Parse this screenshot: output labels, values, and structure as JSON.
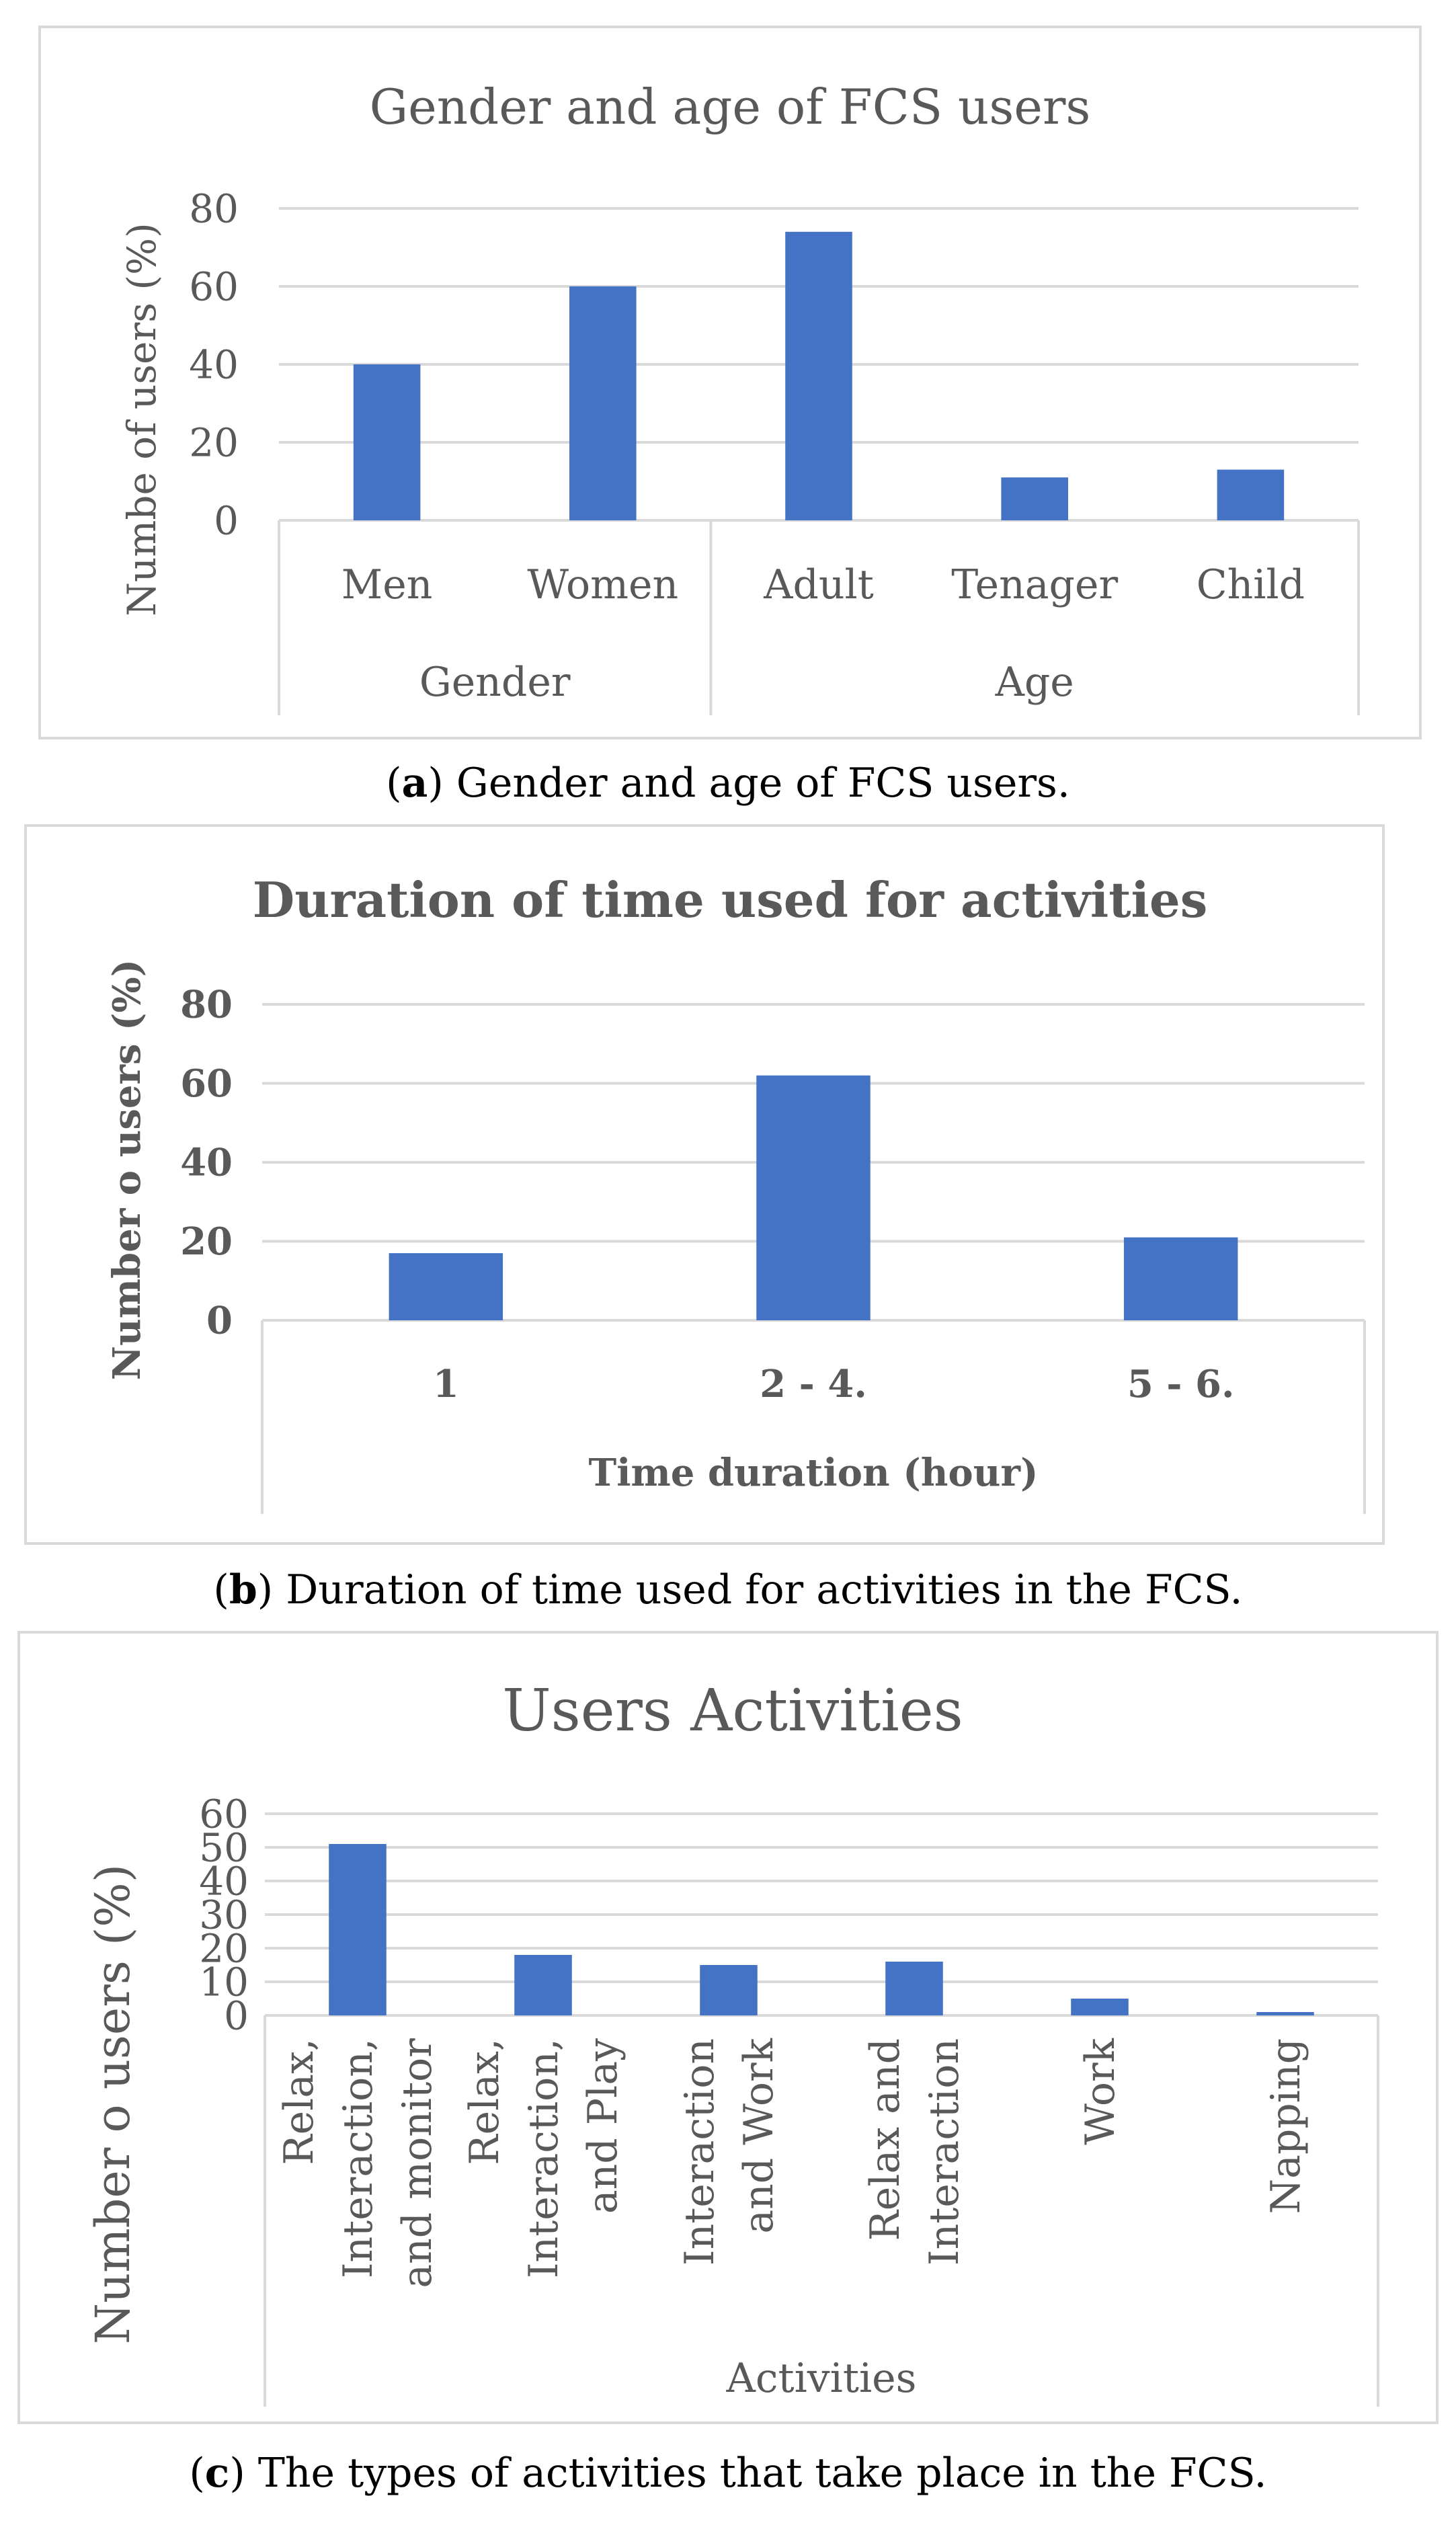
{
  "chart_data": [
    {
      "type": "bar",
      "title": "Gender and age of FCS users",
      "ylabel": "Numbe  of users (%)",
      "xlabel": "",
      "ylim": [
        0,
        80
      ],
      "yticks": [
        "0",
        "20",
        "40",
        "60",
        "80"
      ],
      "groups": [
        {
          "name": "Gender",
          "categories": [
            "Men",
            "Women"
          ]
        },
        {
          "name": "Age",
          "categories": [
            "Adult",
            "Tenager",
            "Child"
          ]
        }
      ],
      "categories": [
        "Men",
        "Women",
        "Adult",
        "Tenager",
        "Child"
      ],
      "values": [
        40,
        60,
        74,
        11,
        13
      ],
      "grid": true,
      "bar_color": "#4472c4"
    },
    {
      "type": "bar",
      "title": "Duration of time used for activities",
      "ylabel": "Number o users (%)",
      "xlabel": "Time duration (hour)",
      "ylim": [
        0,
        80
      ],
      "yticks": [
        "0",
        "20",
        "40",
        "60",
        "80"
      ],
      "categories": [
        "1",
        "2 - 4.",
        "5 - 6."
      ],
      "values": [
        17,
        62,
        21
      ],
      "grid": true,
      "bar_color": "#4472c4"
    },
    {
      "type": "bar",
      "title": "Users  Activities",
      "ylabel": "Number o users (%)",
      "xlabel": "Activities",
      "ylim": [
        0,
        60
      ],
      "yticks": [
        "0",
        "10",
        "20",
        "30",
        "40",
        "50",
        "60"
      ],
      "categories": [
        [
          "Relax,",
          "Interaction,",
          "and monitor"
        ],
        [
          "Relax,",
          "Interaction,",
          "and Play"
        ],
        [
          "Interaction",
          "and Work"
        ],
        [
          "Relax and",
          "Interaction"
        ],
        [
          "Work"
        ],
        [
          "Napping"
        ]
      ],
      "values": [
        51,
        18,
        15,
        16,
        5,
        1
      ],
      "grid": true,
      "bar_color": "#4472c4"
    }
  ],
  "captions": [
    {
      "label": "a",
      "text": " Gender and age of FCS users."
    },
    {
      "label": "b",
      "text": " Duration of time used for activities in the FCS."
    },
    {
      "label": "c",
      "text": " The types of activities that take place in the FCS."
    }
  ]
}
